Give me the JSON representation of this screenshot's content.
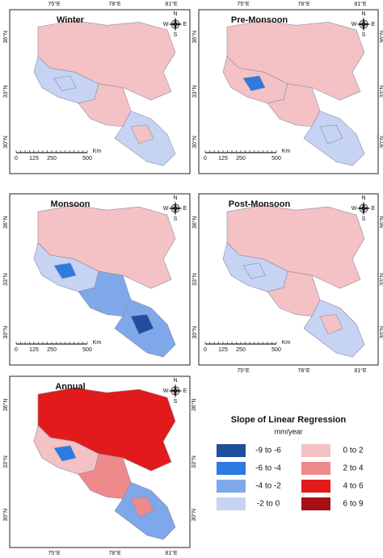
{
  "axis_labels": {
    "lon": [
      "75°E",
      "78°E",
      "81°E"
    ],
    "lat": [
      "36°N",
      "33°N",
      "30°N"
    ]
  },
  "panels": [
    {
      "title": "Winter"
    },
    {
      "title": "Pre-Monsoon"
    },
    {
      "title": "Monsoon"
    },
    {
      "title": "Post-Monsoon"
    },
    {
      "title": "Annual"
    }
  ],
  "scale_bar": {
    "ticks": [
      "0",
      "125",
      "250",
      "500"
    ],
    "unit": "Km"
  },
  "compass": {
    "n": "N",
    "s": "S",
    "e": "E",
    "w": "W"
  },
  "legend": {
    "title": "Slope of Linear Regression",
    "unit": "mm/year",
    "items": [
      {
        "label": "-9 to -6",
        "color": "#1f4e9e"
      },
      {
        "label": "-6 to -4",
        "color": "#2b7be0"
      },
      {
        "label": "-4 to -2",
        "color": "#7fa8ea"
      },
      {
        "label": "-2 to 0",
        "color": "#c6d3f2"
      },
      {
        "label": "0 to 2",
        "color": "#f4c2c4"
      },
      {
        "label": "2 to 4",
        "color": "#ef8a8a"
      },
      {
        "label": "4 to 6",
        "color": "#e31a1c"
      },
      {
        "label": "6 to 9",
        "color": "#a50f15"
      }
    ]
  }
}
